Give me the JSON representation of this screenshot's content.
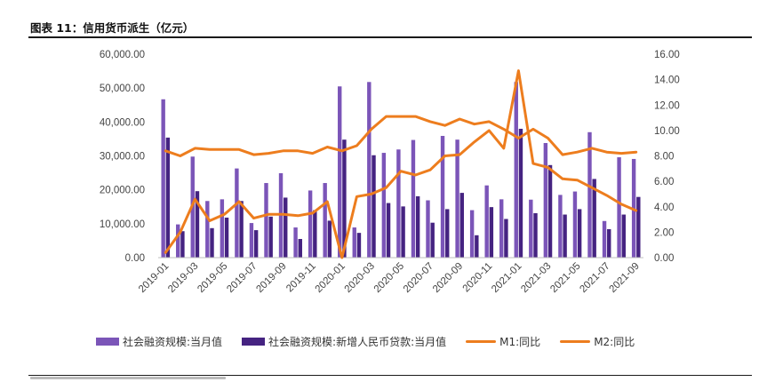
{
  "figure": {
    "title": "图表 11：信用货币派生（亿元）"
  },
  "colors": {
    "tsf": "#7b55b8",
    "loan": "#452381",
    "m1": "#ed7d1e",
    "m2": "#ed7d1e",
    "axis_text": "#444444"
  },
  "chart_data": {
    "type": "bar+line",
    "title": "信用货币派生（亿元）",
    "categories": [
      "2019-01",
      "2019-02",
      "2019-03",
      "2019-04",
      "2019-05",
      "2019-06",
      "2019-07",
      "2019-08",
      "2019-09",
      "2019-10",
      "2019-11",
      "2019-12",
      "2020-01",
      "2020-02",
      "2020-03",
      "2020-04",
      "2020-05",
      "2020-06",
      "2020-07",
      "2020-08",
      "2020-09",
      "2020-10",
      "2020-11",
      "2020-12",
      "2021-01",
      "2021-02",
      "2021-03",
      "2021-04",
      "2021-05",
      "2021-06",
      "2021-07",
      "2021-08",
      "2021-09"
    ],
    "x_tick_labels": [
      "2019-01",
      "2019-03",
      "2019-05",
      "2019-07",
      "2019-09",
      "2019-11",
      "2020-01",
      "2020-03",
      "2020-05",
      "2020-07",
      "2020-09",
      "2020-11",
      "2021-01",
      "2021-03",
      "2021-05",
      "2021-07",
      "2021-09"
    ],
    "y_left": {
      "range": [
        0,
        60000
      ],
      "ticks": [
        "0.00",
        "10,000.00",
        "20,000.00",
        "30,000.00",
        "40,000.00",
        "50,000.00",
        "60,000.00"
      ]
    },
    "y_right": {
      "range": [
        0,
        16
      ],
      "ticks": [
        "0.00",
        "2.00",
        "4.00",
        "6.00",
        "8.00",
        "10.00",
        "12.00",
        "14.00",
        "16.00"
      ]
    },
    "series": [
      {
        "name": "社会融资规模:当月值",
        "kind": "bar",
        "axis": "left",
        "values": [
          46700,
          9800,
          29800,
          16700,
          17200,
          26300,
          10200,
          22000,
          24900,
          8900,
          19800,
          22000,
          50500,
          8900,
          51800,
          30900,
          31900,
          34700,
          16900,
          35900,
          34800,
          14000,
          21300,
          17200,
          51800,
          17100,
          33800,
          18500,
          19500,
          37000,
          10800,
          29600,
          29100
        ]
      },
      {
        "name": "社会融资规模:新增人民币贷款:当月值",
        "kind": "bar",
        "axis": "left",
        "values": [
          35400,
          7800,
          19600,
          8700,
          11800,
          16700,
          8100,
          12100,
          17700,
          5500,
          14000,
          10900,
          34800,
          7300,
          30200,
          16100,
          15100,
          18100,
          10300,
          14300,
          19100,
          6600,
          14900,
          11400,
          38000,
          13100,
          27300,
          12700,
          14300,
          23200,
          8400,
          12700,
          17900
        ]
      },
      {
        "name": "M1:同比",
        "kind": "line",
        "axis": "right",
        "values": [
          0.4,
          2.0,
          4.6,
          2.9,
          3.4,
          4.4,
          3.1,
          3.4,
          3.4,
          3.3,
          3.5,
          4.4,
          0.0,
          4.8,
          5.0,
          5.5,
          6.8,
          6.5,
          6.9,
          8.0,
          8.1,
          9.1,
          10.0,
          8.6,
          14.7,
          7.4,
          7.1,
          6.2,
          6.1,
          5.5,
          4.9,
          4.2,
          3.7
        ]
      },
      {
        "name": "M2:同比",
        "kind": "line",
        "axis": "right",
        "values": [
          8.4,
          8.0,
          8.6,
          8.5,
          8.5,
          8.5,
          8.1,
          8.2,
          8.4,
          8.4,
          8.2,
          8.7,
          8.4,
          8.8,
          10.1,
          11.1,
          11.1,
          11.1,
          10.7,
          10.4,
          10.9,
          10.5,
          10.7,
          10.1,
          9.4,
          10.1,
          9.4,
          8.1,
          8.3,
          8.6,
          8.3,
          8.2,
          8.3
        ]
      }
    ],
    "legend": {
      "position": "bottom",
      "labels": [
        "社会融资规模:当月值",
        "社会融资规模:新增人民币贷款:当月值",
        "M1:同比",
        "M2:同比"
      ]
    }
  }
}
